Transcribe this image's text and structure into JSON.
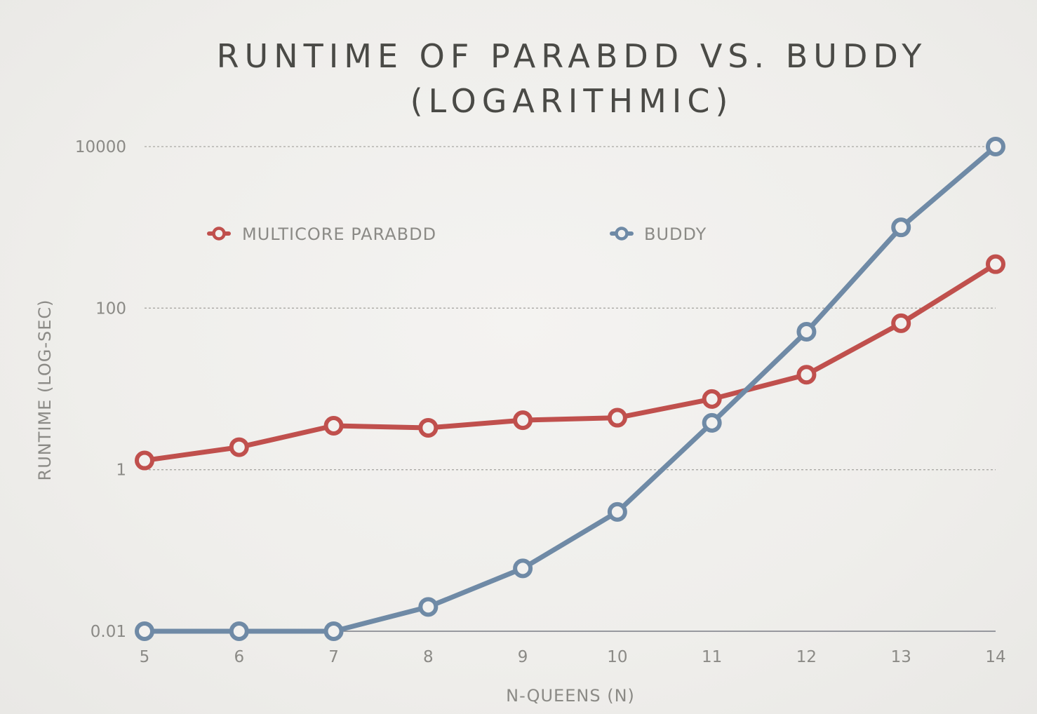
{
  "chart_data": {
    "type": "line",
    "title_lines": [
      "RUNTIME OF PARABDD VS. BUDDY",
      "(LOGARITHMIC)"
    ],
    "xlabel": "N-QUEENS (N)",
    "ylabel": "RUNTIME (LOG-SEC)",
    "y_scale": "log",
    "ylim": [
      0.01,
      10000
    ],
    "y_ticks": [
      {
        "value": 10000,
        "label": "10000"
      },
      {
        "value": 100,
        "label": "100"
      },
      {
        "value": 1,
        "label": "1"
      },
      {
        "value": 0.01,
        "label": "0.01"
      }
    ],
    "x": [
      5,
      6,
      7,
      8,
      9,
      10,
      11,
      12,
      13,
      14
    ],
    "x_tick_labels": [
      "5",
      "6",
      "7",
      "8",
      "9",
      "10",
      "11",
      "12",
      "13",
      "14"
    ],
    "series": [
      {
        "name": "MULTICORE PARABDD",
        "color": "#c0504d",
        "values": [
          1.3,
          1.9,
          3.5,
          3.3,
          4.1,
          4.4,
          7.5,
          15,
          65,
          350
        ]
      },
      {
        "name": "BUDDY",
        "color": "#6f8aa6",
        "values": [
          0.01,
          0.01,
          0.01,
          0.02,
          0.06,
          0.3,
          3.8,
          51,
          1000,
          10000
        ]
      }
    ],
    "legend_position": "top-left"
  }
}
